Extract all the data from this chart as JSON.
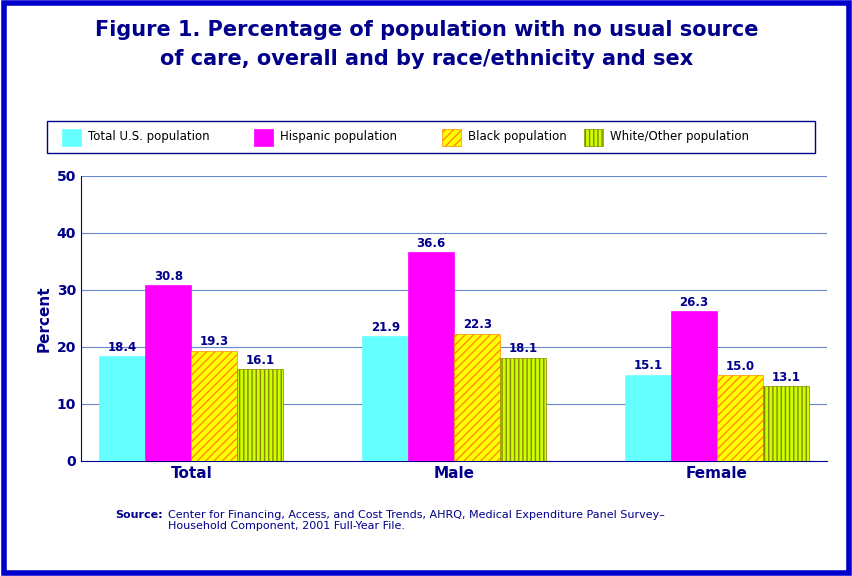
{
  "title_line1": "Figure 1. Percentage of population with no usual source",
  "title_line2": "of care, overall and by race/ethnicity and sex",
  "title_color": "#00008B",
  "background_color": "#FFFFFF",
  "border_color": "#0000CC",
  "border_lw": 4,
  "ylabel": "Percent",
  "ylabel_color": "#00008B",
  "categories": [
    "Total",
    "Male",
    "Female"
  ],
  "series": [
    {
      "label": "Total U.S. population",
      "values": [
        18.4,
        21.9,
        15.1
      ],
      "face_color": "#66FFFF",
      "edge_color": "#66FFFF",
      "hatch": null
    },
    {
      "label": "Hispanic population",
      "values": [
        30.8,
        36.6,
        26.3
      ],
      "face_color": "#FF00FF",
      "edge_color": "#FF00FF",
      "hatch": null
    },
    {
      "label": "Black population",
      "values": [
        19.3,
        22.3,
        15.0
      ],
      "face_color": "#FFFF00",
      "edge_color": "#FF8C00",
      "hatch": "////"
    },
    {
      "label": "White/Other population",
      "values": [
        16.1,
        18.1,
        13.1
      ],
      "face_color": "#CCFF00",
      "edge_color": "#888800",
      "hatch": "||||"
    }
  ],
  "ylim": [
    0,
    50
  ],
  "yticks": [
    0,
    10,
    20,
    30,
    40,
    50
  ],
  "gridline_color": "#6688CC",
  "tick_color": "#00008B",
  "bar_label_color": "#00008B",
  "bar_label_fontsize": 8.5,
  "category_fontsize": 11,
  "legend_fontsize": 8.5,
  "title_fontsize": 15,
  "ylabel_fontsize": 11,
  "source_text_plain": "Center for Financing, Access, and Cost Trends, AHRQ, Medical Expenditure Panel Survey–\nHousehold Component, 2001 Full-Year File.",
  "source_fontsize": 8
}
